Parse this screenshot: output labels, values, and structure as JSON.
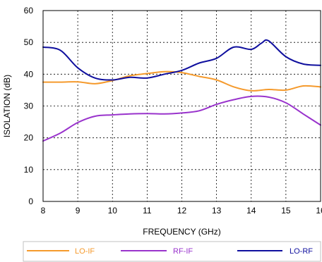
{
  "chart_data": {
    "type": "line",
    "title": "",
    "xlabel": "FREQUENCY (GHz)",
    "ylabel": "ISOLATION (dB)",
    "xlim": [
      8,
      16
    ],
    "ylim": [
      0,
      60
    ],
    "x_ticks": [
      "8",
      "9",
      "10",
      "11",
      "12",
      "13",
      "14",
      "15",
      "16"
    ],
    "y_ticks": [
      "0",
      "10",
      "20",
      "30",
      "40",
      "50",
      "60"
    ],
    "grid": true,
    "legend_position": "bottom",
    "series": [
      {
        "name": "LO-IF",
        "color": "#f59a2c",
        "x": [
          8,
          8.5,
          9,
          9.5,
          10,
          10.5,
          11,
          11.5,
          12,
          12.5,
          13,
          13.5,
          14,
          14.5,
          15,
          15.5,
          16
        ],
        "y": [
          37.5,
          37.5,
          37.6,
          37.0,
          38.0,
          39.5,
          40.2,
          40.8,
          40.5,
          39.3,
          38.2,
          36.0,
          34.8,
          35.2,
          35.0,
          36.3,
          36.0
        ]
      },
      {
        "name": "RF-IF",
        "color": "#9933cc",
        "x": [
          8,
          8.5,
          9,
          9.5,
          10,
          10.5,
          11,
          11.5,
          12,
          12.5,
          13,
          13.5,
          14,
          14.5,
          15,
          15.5,
          16
        ],
        "y": [
          19.0,
          21.5,
          24.8,
          26.8,
          27.2,
          27.5,
          27.6,
          27.5,
          27.8,
          28.5,
          30.5,
          32.0,
          33.0,
          32.8,
          31.0,
          27.5,
          24.0
        ]
      },
      {
        "name": "LO-RF",
        "color": "#0f0f9e",
        "x": [
          8,
          8.5,
          9,
          9.5,
          10,
          10.5,
          11,
          11.5,
          12,
          12.5,
          13,
          13.5,
          14,
          14.3,
          14.5,
          15,
          15.5,
          16
        ],
        "y": [
          48.5,
          47.5,
          42.0,
          38.8,
          38.2,
          39.0,
          38.8,
          40.0,
          41.2,
          43.5,
          45.0,
          48.5,
          47.8,
          49.8,
          50.5,
          45.5,
          43.2,
          42.8
        ]
      }
    ]
  }
}
